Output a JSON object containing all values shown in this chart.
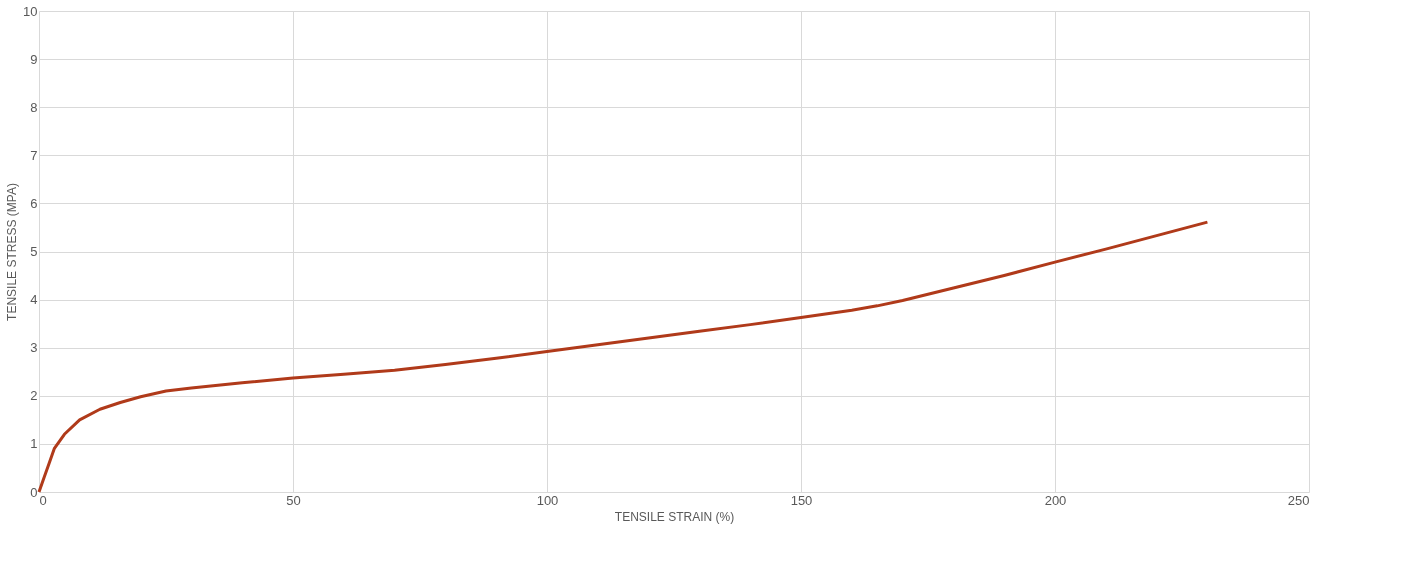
{
  "chart_data": {
    "type": "line",
    "xlabel": "TENSILE STRAIN (%)",
    "ylabel": "TENSILE STRESS (MPA)",
    "xlim": [
      0,
      250
    ],
    "xticks": [
      0,
      50,
      100,
      150,
      200,
      250
    ],
    "ylim": [
      0,
      10
    ],
    "yticks": [
      0,
      1,
      2,
      3,
      4,
      5,
      6,
      7,
      8,
      9,
      10
    ],
    "grid": true,
    "marker": "none",
    "line_style": "solid",
    "series": [
      {
        "color": "#b03a1a",
        "x": [
          0,
          1,
          2,
          3,
          5,
          8,
          12,
          16,
          20,
          25,
          30,
          40,
          50,
          60,
          70,
          80,
          90,
          100,
          110,
          120,
          130,
          140,
          150,
          160,
          165,
          170,
          180,
          190,
          200,
          210,
          220,
          230
        ],
        "values": [
          0,
          0.3,
          0.6,
          0.9,
          1.2,
          1.5,
          1.72,
          1.86,
          1.98,
          2.1,
          2.16,
          2.27,
          2.37,
          2.45,
          2.53,
          2.65,
          2.78,
          2.92,
          3.06,
          3.2,
          3.34,
          3.48,
          3.63,
          3.78,
          3.87,
          3.98,
          4.24,
          4.5,
          4.78,
          5.05,
          5.33,
          5.61
        ]
      }
    ]
  }
}
